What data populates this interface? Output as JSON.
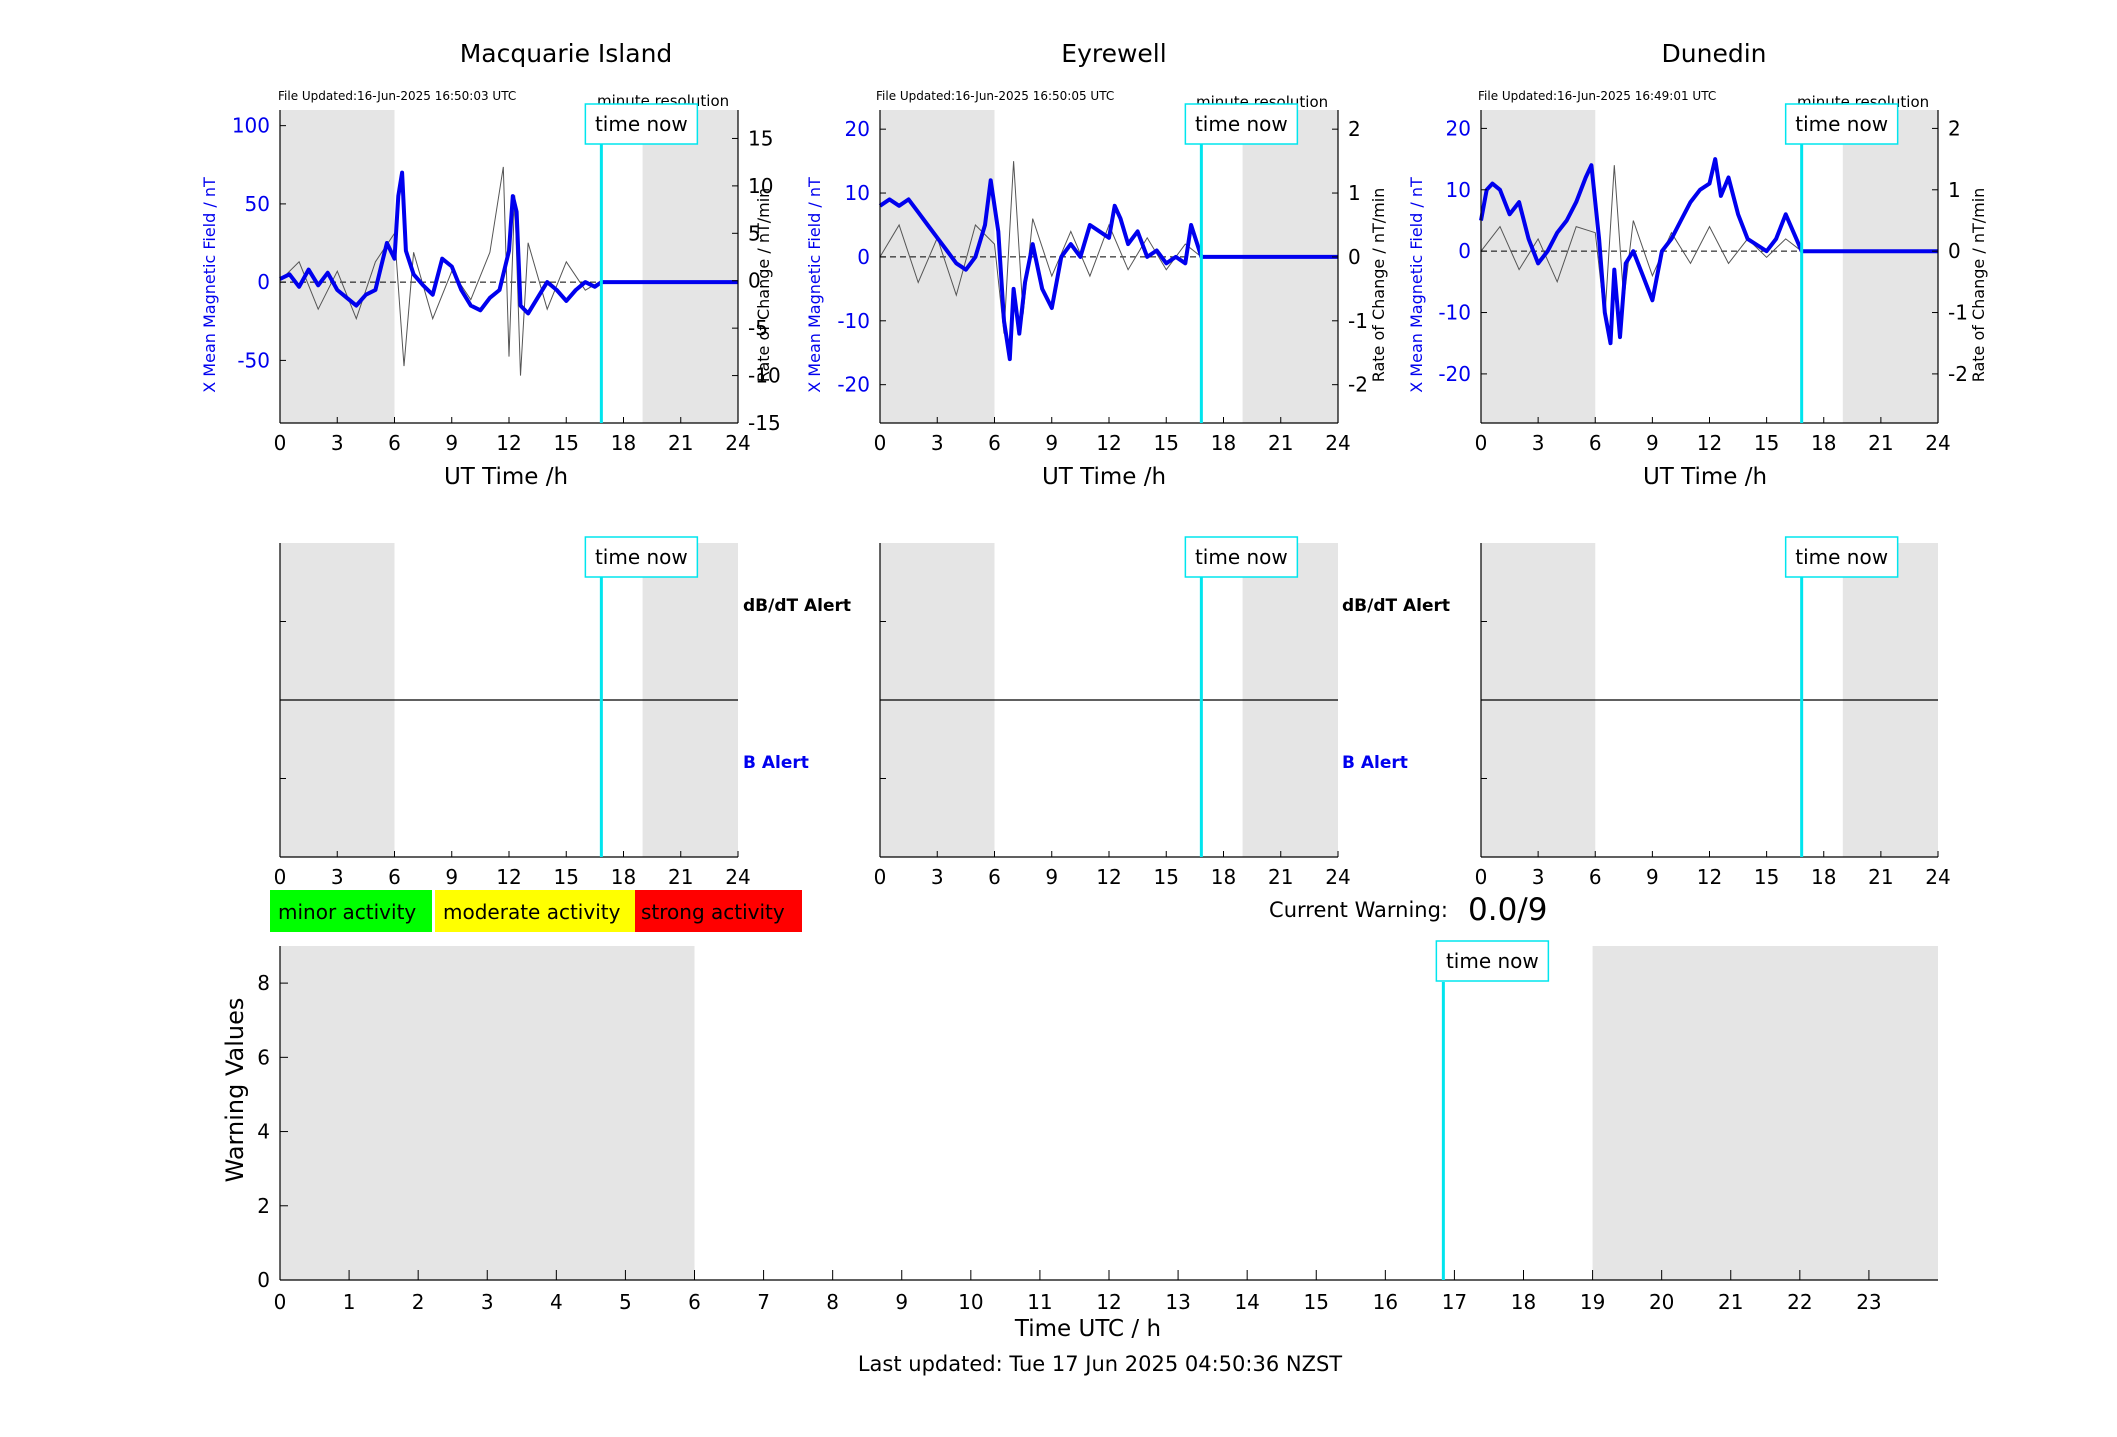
{
  "chart_data": [
    {
      "type": "line",
      "id": "macquarie-b",
      "title": "Macquarie Island",
      "file_updated": "File Updated:16-Jun-2025 16:50:03 UTC",
      "resolution_note": "minute resolution",
      "time_now_label": "time now",
      "time_now_h": 16.84,
      "night_shading": [
        [
          0,
          6
        ],
        [
          19,
          24
        ]
      ],
      "xlabel": "UT Time /h",
      "ylabel_left": "X Mean Magnetic Field / nT",
      "ylabel_right": "Rate of Change / nT/min",
      "xlim": [
        0,
        24
      ],
      "xticks": [
        0,
        3,
        6,
        9,
        12,
        15,
        18,
        21,
        24
      ],
      "ylim_left": [
        -90,
        110
      ],
      "yticks_left": [
        -50,
        0,
        50,
        100
      ],
      "ylim_right": [
        -15,
        18
      ],
      "yticks_right": [
        -15,
        -10,
        -5,
        0,
        5,
        10,
        15
      ],
      "series": [
        {
          "x": [
            0,
            0.5,
            1,
            1.5,
            2,
            2.5,
            3,
            3.5,
            4,
            4.5,
            5,
            5.3,
            5.6,
            6,
            6.2,
            6.4,
            6.6,
            7,
            7.5,
            8,
            8.5,
            9,
            9.5,
            10,
            10.5,
            11,
            11.5,
            12,
            12.2,
            12.4,
            12.6,
            13,
            13.5,
            14,
            14.5,
            15,
            15.5,
            16,
            16.5,
            16.84,
            24
          ],
          "y": [
            2,
            5,
            -3,
            8,
            -2,
            6,
            -5,
            -10,
            -15,
            -8,
            -5,
            10,
            25,
            15,
            55,
            70,
            20,
            5,
            -2,
            -8,
            15,
            10,
            -5,
            -15,
            -18,
            -10,
            -5,
            20,
            55,
            45,
            -15,
            -20,
            -10,
            0,
            -5,
            -12,
            -5,
            0,
            -3,
            0,
            0
          ]
        },
        {
          "x": [
            0,
            1,
            2,
            3,
            4,
            5,
            6,
            6.5,
            7,
            8,
            9,
            10,
            11,
            11.7,
            12,
            12.3,
            12.6,
            13,
            14,
            15,
            16,
            16.84
          ],
          "y": [
            0,
            2,
            -3,
            1,
            -4,
            2,
            5,
            -9,
            3,
            -4,
            1,
            -2,
            3,
            12,
            -8,
            9,
            -10,
            4,
            -3,
            2,
            -1,
            0
          ]
        }
      ]
    },
    {
      "type": "line",
      "id": "eyrewell-b",
      "title": "Eyrewell",
      "file_updated": "File Updated:16-Jun-2025 16:50:05 UTC",
      "resolution_note": "minute resolution",
      "time_now_label": "time now",
      "time_now_h": 16.84,
      "night_shading": [
        [
          0,
          6
        ],
        [
          19,
          24
        ]
      ],
      "xlabel": "UT Time /h",
      "ylabel_left": "X Mean Magnetic Field / nT",
      "ylabel_right": "Rate of Change / nT/min",
      "xlim": [
        0,
        24
      ],
      "xticks": [
        0,
        3,
        6,
        9,
        12,
        15,
        18,
        21,
        24
      ],
      "ylim_left": [
        -26,
        23
      ],
      "yticks_left": [
        -20,
        -10,
        0,
        10,
        20
      ],
      "ylim_right": [
        -2.6,
        2.3
      ],
      "yticks_right": [
        -2,
        -1,
        0,
        1,
        2
      ],
      "series": [
        {
          "x": [
            0,
            0.5,
            1,
            1.5,
            2,
            2.5,
            3,
            3.5,
            4,
            4.5,
            5,
            5.5,
            5.8,
            6.2,
            6.5,
            6.8,
            7,
            7.3,
            7.6,
            8,
            8.5,
            9,
            9.5,
            10,
            10.5,
            11,
            11.5,
            12,
            12.3,
            12.6,
            13,
            13.5,
            14,
            14.5,
            15,
            15.5,
            16,
            16.3,
            16.84,
            24
          ],
          "y": [
            8,
            9,
            8,
            9,
            7,
            5,
            3,
            1,
            -1,
            -2,
            0,
            5,
            12,
            4,
            -10,
            -16,
            -5,
            -12,
            -4,
            2,
            -5,
            -8,
            0,
            2,
            0,
            5,
            4,
            3,
            8,
            6,
            2,
            4,
            0,
            1,
            -1,
            0,
            -1,
            5,
            0,
            0
          ]
        },
        {
          "x": [
            0,
            1,
            2,
            3,
            4,
            5,
            6,
            6.5,
            7,
            7.5,
            8,
            9,
            10,
            11,
            12,
            13,
            14,
            15,
            16,
            16.84
          ],
          "y": [
            0,
            0.5,
            -0.4,
            0.3,
            -0.6,
            0.5,
            0.2,
            -1.2,
            1.5,
            -0.9,
            0.6,
            -0.3,
            0.4,
            -0.3,
            0.5,
            -0.2,
            0.3,
            -0.2,
            0.2,
            0
          ]
        }
      ]
    },
    {
      "type": "line",
      "id": "dunedin-b",
      "title": "Dunedin",
      "file_updated": "File Updated:16-Jun-2025 16:49:01 UTC",
      "resolution_note": "minute resolution",
      "time_now_label": "time now",
      "time_now_h": 16.84,
      "night_shading": [
        [
          0,
          6
        ],
        [
          19,
          24
        ]
      ],
      "xlabel": "UT Time /h",
      "ylabel_left": "X Mean Magnetic Field / nT",
      "ylabel_right": "Rate of Change / nT/min",
      "xlim": [
        0,
        24
      ],
      "xticks": [
        0,
        3,
        6,
        9,
        12,
        15,
        18,
        21,
        24
      ],
      "ylim_left": [
        -28,
        23
      ],
      "yticks_left": [
        -20,
        -10,
        0,
        10,
        20
      ],
      "ylim_right": [
        -2.8,
        2.3
      ],
      "yticks_right": [
        -2,
        -1,
        0,
        1,
        2
      ],
      "series": [
        {
          "x": [
            0,
            0.3,
            0.6,
            1,
            1.5,
            2,
            2.5,
            3,
            3.5,
            4,
            4.5,
            5,
            5.5,
            5.8,
            6.2,
            6.5,
            6.8,
            7,
            7.3,
            7.6,
            8,
            8.5,
            9,
            9.5,
            10,
            10.5,
            11,
            11.5,
            12,
            12.3,
            12.6,
            13,
            13.5,
            14,
            14.5,
            15,
            15.5,
            16,
            16.84,
            24
          ],
          "y": [
            5,
            10,
            11,
            10,
            6,
            8,
            2,
            -2,
            0,
            3,
            5,
            8,
            12,
            14,
            2,
            -10,
            -15,
            -3,
            -14,
            -2,
            0,
            -4,
            -8,
            0,
            2,
            5,
            8,
            10,
            11,
            15,
            9,
            12,
            6,
            2,
            1,
            0,
            2,
            6,
            0,
            0
          ]
        },
        {
          "x": [
            0,
            1,
            2,
            3,
            4,
            5,
            6,
            6.5,
            7,
            7.5,
            8,
            9,
            10,
            11,
            12,
            13,
            14,
            15,
            16,
            16.84
          ],
          "y": [
            0,
            0.4,
            -0.3,
            0.2,
            -0.5,
            0.4,
            0.3,
            -1.1,
            1.4,
            -0.8,
            0.5,
            -0.4,
            0.3,
            -0.2,
            0.4,
            -0.2,
            0.2,
            -0.1,
            0.2,
            0
          ]
        }
      ]
    },
    {
      "type": "line",
      "id": "macquarie-alert",
      "time_now_label": "time now",
      "time_now_h": 16.84,
      "night_shading": [
        [
          0,
          6
        ],
        [
          19,
          24
        ]
      ],
      "xticks": [
        0,
        3,
        6,
        9,
        12,
        15,
        18,
        21,
        24
      ],
      "label_top": "dB/dT Alert",
      "label_bottom": "B Alert"
    },
    {
      "type": "line",
      "id": "eyrewell-alert",
      "time_now_label": "time now",
      "time_now_h": 16.84,
      "night_shading": [
        [
          0,
          6
        ],
        [
          19,
          24
        ]
      ],
      "xticks": [
        0,
        3,
        6,
        9,
        12,
        15,
        18,
        21,
        24
      ],
      "label_top": "dB/dT Alert",
      "label_bottom": "B Alert"
    },
    {
      "type": "line",
      "id": "dunedin-alert",
      "time_now_label": "time now",
      "time_now_h": 16.84,
      "night_shading": [
        [
          0,
          6
        ],
        [
          19,
          24
        ]
      ],
      "xticks": [
        0,
        3,
        6,
        9,
        12,
        15,
        18,
        21,
        24
      ]
    },
    {
      "type": "bar",
      "id": "warning-values",
      "xlabel": "Time UTC / h",
      "ylabel": "Warning Values",
      "xlim": [
        0,
        24
      ],
      "xticks": [
        0,
        1,
        2,
        3,
        4,
        5,
        6,
        7,
        8,
        9,
        10,
        11,
        12,
        13,
        14,
        15,
        16,
        17,
        18,
        19,
        20,
        21,
        22,
        23
      ],
      "ylim": [
        0,
        9
      ],
      "yticks": [
        0,
        2,
        4,
        6,
        8
      ],
      "night_shading": [
        [
          0,
          6
        ],
        [
          19,
          24
        ]
      ],
      "time_now_label": "time now",
      "time_now_h": 16.84,
      "values": []
    }
  ],
  "legend": {
    "minor": {
      "label": "minor activity",
      "color": "#00ff00"
    },
    "moderate": {
      "label": "moderate activity",
      "color": "#ffff00"
    },
    "strong": {
      "label": "strong activity",
      "color": "#ff0000"
    }
  },
  "current_warning": {
    "label": "Current Warning:",
    "value": "0.0/9"
  },
  "footer": {
    "last_updated": "Last updated: Tue 17 Jun 2025 04:50:36 NZST"
  },
  "colors": {
    "field": "#0000ee",
    "rate": "#555555",
    "time_now": "#00e5ee",
    "night": "#e5e5e5"
  }
}
